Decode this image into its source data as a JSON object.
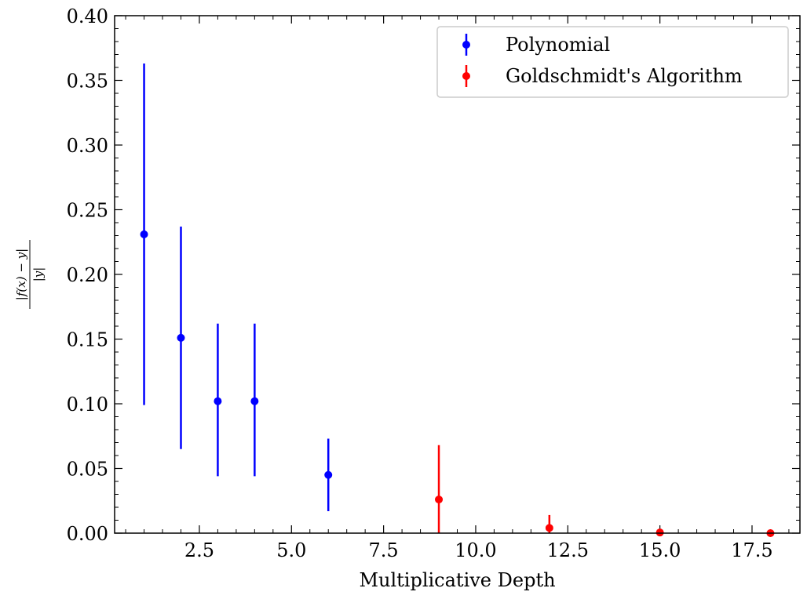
{
  "chart_data": {
    "type": "scatter",
    "xlabel": "Multiplicative Depth",
    "ylabel": {
      "numerator": "|f(x) − y|",
      "denominator": "|y|"
    },
    "xlim": [
      0.2,
      18.8
    ],
    "ylim": [
      0,
      0.4
    ],
    "x_ticks": [
      2.5,
      5.0,
      7.5,
      10.0,
      12.5,
      15.0,
      17.5
    ],
    "x_tick_labels": [
      "2.5",
      "5.0",
      "7.5",
      "10.0",
      "12.5",
      "15.0",
      "17.5"
    ],
    "y_ticks": [
      0.0,
      0.05,
      0.1,
      0.15,
      0.2,
      0.25,
      0.3,
      0.35,
      0.4
    ],
    "y_tick_labels": [
      "0.00",
      "0.05",
      "0.10",
      "0.15",
      "0.20",
      "0.25",
      "0.30",
      "0.35",
      "0.40"
    ],
    "grid": false,
    "legend_position": "top-right",
    "series": [
      {
        "name": "Polynomial",
        "color": "#0000ff",
        "x": [
          1,
          2,
          3,
          4,
          6
        ],
        "y": [
          0.231,
          0.151,
          0.102,
          0.102,
          0.045
        ],
        "err_low": [
          0.099,
          0.065,
          0.044,
          0.044,
          0.017
        ],
        "err_high": [
          0.363,
          0.237,
          0.162,
          0.162,
          0.073
        ]
      },
      {
        "name": "Goldschmidt's Algorithm",
        "color": "#ff0000",
        "x": [
          9,
          12,
          15,
          18
        ],
        "y": [
          0.026,
          0.004,
          0.0005,
          0.0
        ],
        "err_low": [
          0.0,
          0.0,
          0.0,
          0.0
        ],
        "err_high": [
          0.068,
          0.014,
          0.003,
          0.001
        ]
      }
    ]
  }
}
